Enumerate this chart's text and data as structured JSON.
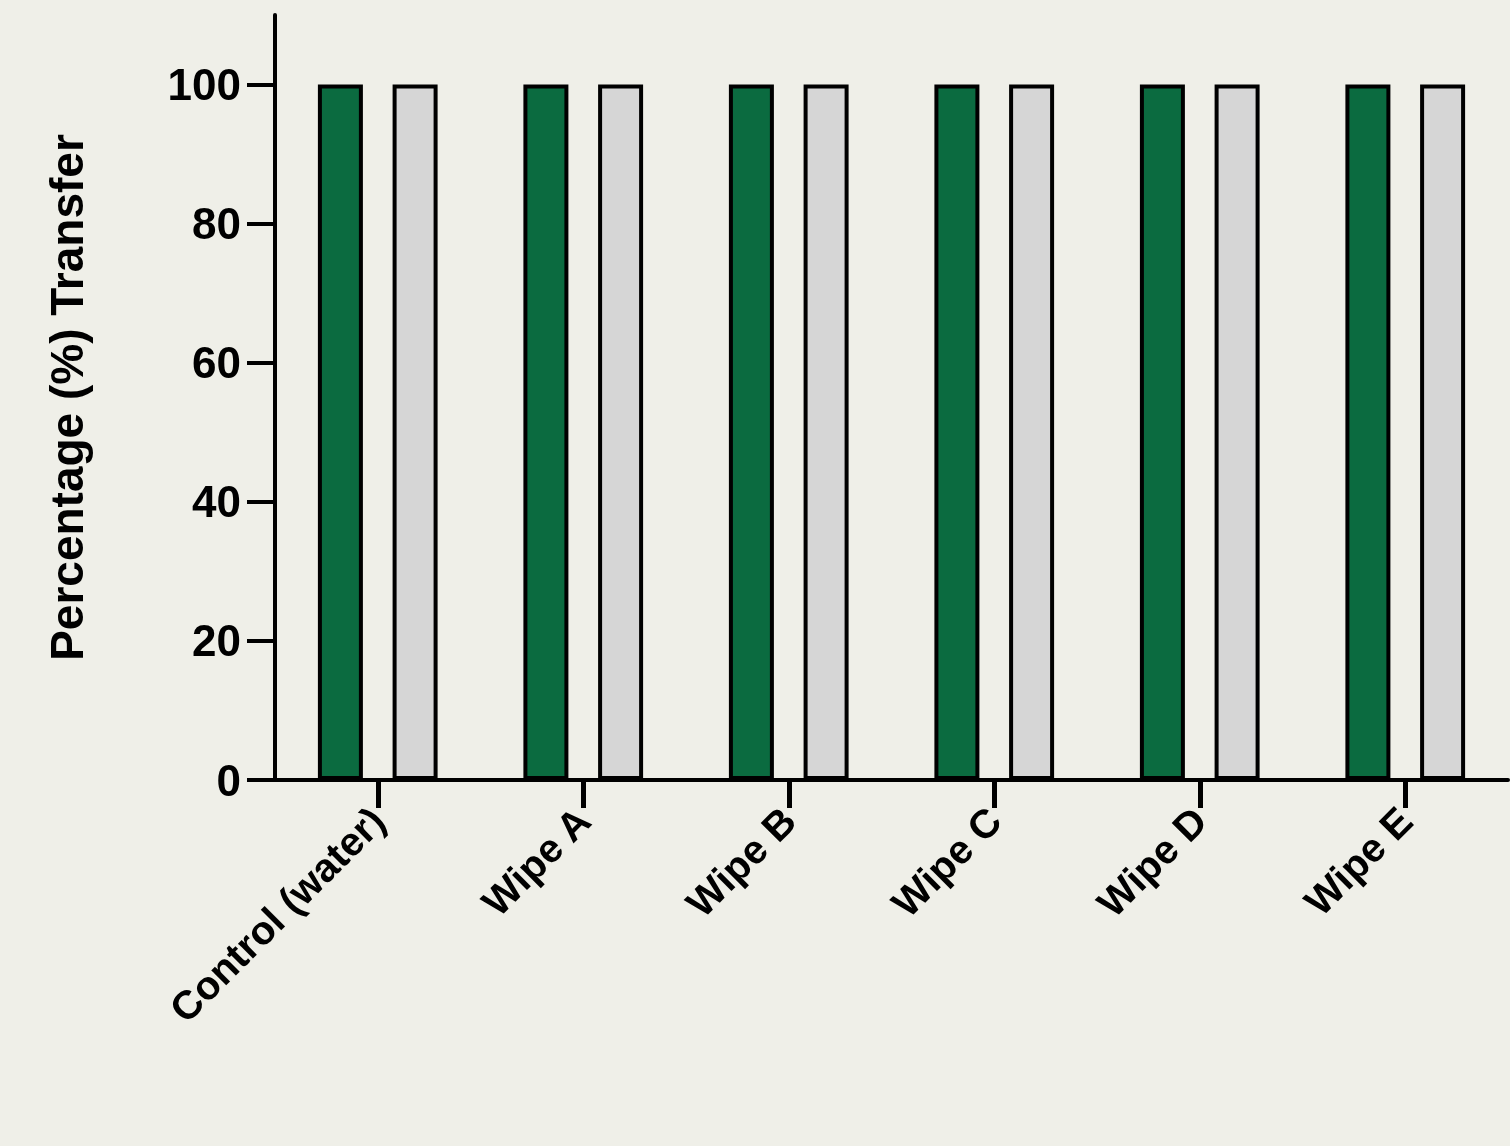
{
  "chart_data": {
    "type": "bar",
    "ylabel": "Percentage (%) Transfer",
    "categories": [
      "Control (water)",
      "Wipe A",
      "Wipe B",
      "Wipe C",
      "Wipe D",
      "Wipe E"
    ],
    "series": [
      {
        "color": "#0b6b40",
        "values": [
          100,
          100,
          100,
          100,
          100,
          100
        ]
      },
      {
        "color": "#d6d6d6",
        "values": [
          100,
          100,
          100,
          100,
          100,
          100
        ]
      }
    ],
    "ylim": [
      0,
      110
    ],
    "yticks": [
      0,
      20,
      40,
      60,
      80,
      100
    ],
    "grid": false
  }
}
